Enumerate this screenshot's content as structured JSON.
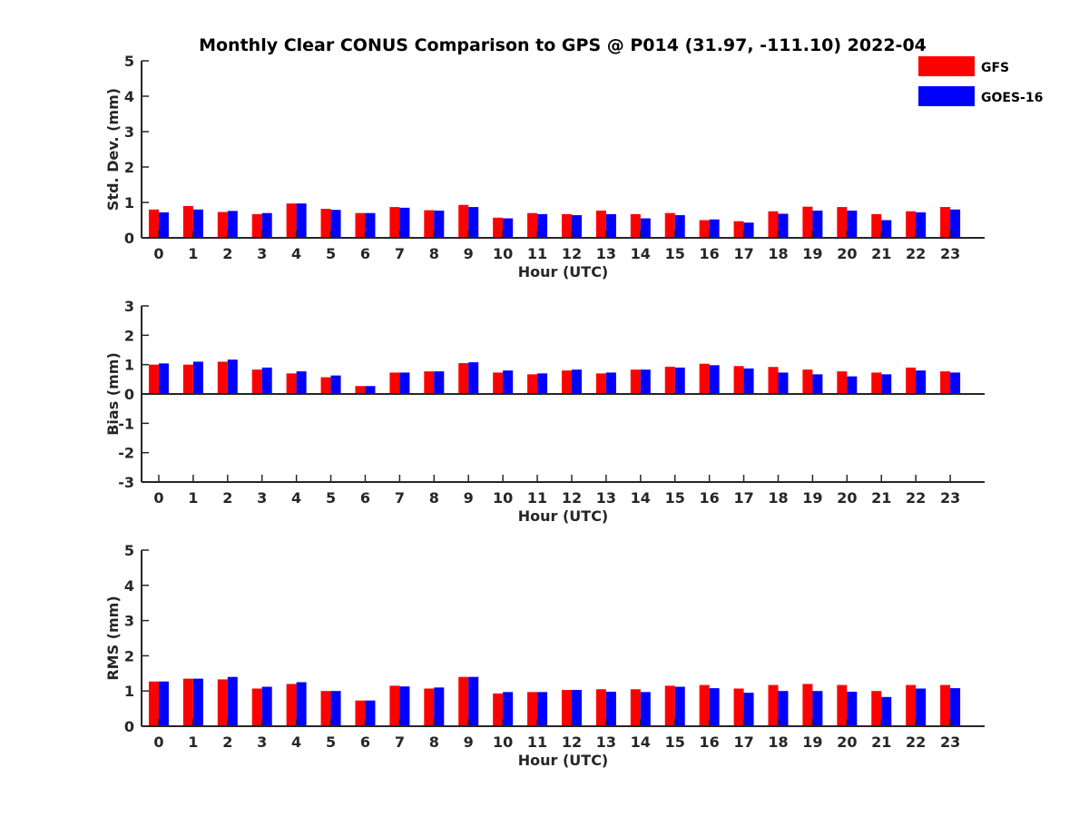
{
  "title": "Monthly Clear CONUS Comparison to GPS @ P014 (31.97, -111.10) 2022-04",
  "legend": [
    {
      "label": "GFS",
      "color": "#ff0000"
    },
    {
      "label": "GOES-16",
      "color": "#0000ff"
    }
  ],
  "chart_data": [
    {
      "type": "bar",
      "title": "Monthly Clear CONUS Comparison to GPS @ P014 (31.97, -111.10) 2022-04",
      "xlabel": "Hour (UTC)",
      "ylabel": "Std. Dev. (mm)",
      "ylim": [
        0,
        5
      ],
      "yticks": [
        0,
        1,
        2,
        3,
        4,
        5
      ],
      "categories": [
        "0",
        "1",
        "2",
        "3",
        "4",
        "5",
        "6",
        "7",
        "8",
        "9",
        "10",
        "11",
        "12",
        "13",
        "14",
        "15",
        "16",
        "17",
        "18",
        "19",
        "20",
        "21",
        "22",
        "23"
      ],
      "series": [
        {
          "name": "GFS",
          "color": "#ff0000",
          "values": [
            0.8,
            0.9,
            0.73,
            0.67,
            0.97,
            0.82,
            0.7,
            0.87,
            0.78,
            0.93,
            0.57,
            0.7,
            0.67,
            0.77,
            0.67,
            0.7,
            0.5,
            0.47,
            0.75,
            0.88,
            0.87,
            0.67,
            0.75,
            0.87
          ]
        },
        {
          "name": "GOES-16",
          "color": "#0000ff",
          "values": [
            0.72,
            0.8,
            0.76,
            0.7,
            0.97,
            0.79,
            0.7,
            0.85,
            0.77,
            0.87,
            0.55,
            0.67,
            0.64,
            0.67,
            0.55,
            0.64,
            0.52,
            0.43,
            0.68,
            0.77,
            0.77,
            0.5,
            0.72,
            0.8
          ]
        }
      ]
    },
    {
      "type": "bar",
      "xlabel": "Hour (UTC)",
      "ylabel": "Bias (mm)",
      "ylim": [
        -3,
        3
      ],
      "yticks": [
        -3,
        -2,
        -1,
        0,
        1,
        2,
        3
      ],
      "categories": [
        "0",
        "1",
        "2",
        "3",
        "4",
        "5",
        "6",
        "7",
        "8",
        "9",
        "10",
        "11",
        "12",
        "13",
        "14",
        "15",
        "16",
        "17",
        "18",
        "19",
        "20",
        "21",
        "22",
        "23"
      ],
      "series": [
        {
          "name": "GFS",
          "color": "#ff0000",
          "values": [
            1.0,
            1.0,
            1.1,
            0.83,
            0.7,
            0.57,
            0.27,
            0.73,
            0.77,
            1.05,
            0.73,
            0.67,
            0.8,
            0.7,
            0.83,
            0.93,
            1.03,
            0.95,
            0.92,
            0.83,
            0.77,
            0.73,
            0.9,
            0.77
          ]
        },
        {
          "name": "GOES-16",
          "color": "#0000ff",
          "values": [
            1.04,
            1.1,
            1.17,
            0.9,
            0.77,
            0.63,
            0.27,
            0.73,
            0.77,
            1.08,
            0.8,
            0.7,
            0.83,
            0.73,
            0.83,
            0.9,
            0.98,
            0.87,
            0.73,
            0.67,
            0.6,
            0.67,
            0.8,
            0.73
          ]
        }
      ]
    },
    {
      "type": "bar",
      "xlabel": "Hour (UTC)",
      "ylabel": "RMS (mm)",
      "ylim": [
        0,
        5
      ],
      "yticks": [
        0,
        1,
        2,
        3,
        4,
        5
      ],
      "categories": [
        "0",
        "1",
        "2",
        "3",
        "4",
        "5",
        "6",
        "7",
        "8",
        "9",
        "10",
        "11",
        "12",
        "13",
        "14",
        "15",
        "16",
        "17",
        "18",
        "19",
        "20",
        "21",
        "22",
        "23"
      ],
      "series": [
        {
          "name": "GFS",
          "color": "#ff0000",
          "values": [
            1.27,
            1.35,
            1.33,
            1.07,
            1.2,
            1.0,
            0.73,
            1.15,
            1.07,
            1.4,
            0.93,
            0.97,
            1.03,
            1.05,
            1.05,
            1.15,
            1.17,
            1.07,
            1.17,
            1.2,
            1.17,
            1.0,
            1.17,
            1.17
          ]
        },
        {
          "name": "GOES-16",
          "color": "#0000ff",
          "values": [
            1.27,
            1.35,
            1.4,
            1.12,
            1.25,
            1.0,
            0.73,
            1.13,
            1.1,
            1.4,
            0.97,
            0.97,
            1.03,
            0.98,
            0.97,
            1.12,
            1.08,
            0.95,
            1.0,
            1.0,
            0.98,
            0.83,
            1.07,
            1.08
          ]
        }
      ]
    }
  ]
}
